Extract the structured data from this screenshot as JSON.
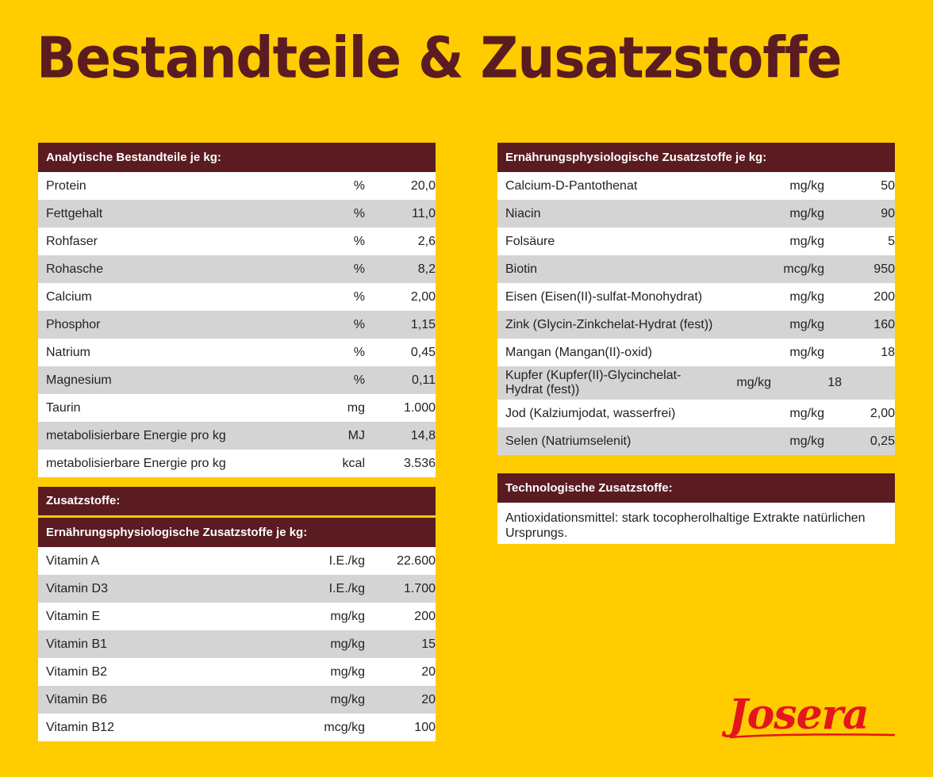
{
  "title": "Bestandteile & Zusatzstoffe",
  "colors": {
    "background": "#FFCC00",
    "header": "#5A1C20",
    "row_alt": "#D4D4D4",
    "logo": "#E3161B"
  },
  "analytical": {
    "header": "Analytische Bestandteile je kg:",
    "rows": [
      {
        "name": "Protein",
        "unit": "%",
        "value": "20,0"
      },
      {
        "name": "Fettgehalt",
        "unit": "%",
        "value": "11,0"
      },
      {
        "name": "Rohfaser",
        "unit": "%",
        "value": "2,6"
      },
      {
        "name": "Rohasche",
        "unit": "%",
        "value": "8,2"
      },
      {
        "name": "Calcium",
        "unit": "%",
        "value": "2,00"
      },
      {
        "name": "Phosphor",
        "unit": "%",
        "value": "1,15"
      },
      {
        "name": "Natrium",
        "unit": "%",
        "value": "0,45"
      },
      {
        "name": "Magnesium",
        "unit": "%",
        "value": "0,11"
      },
      {
        "name": "Taurin",
        "unit": "mg",
        "value": "1.000"
      },
      {
        "name": "metabolisierbare Energie pro kg",
        "unit": "MJ",
        "value": "14,8"
      },
      {
        "name": "metabolisierbare Energie pro kg",
        "unit": "kcal",
        "value": "3.536"
      }
    ]
  },
  "additives": {
    "header": "Zusatzstoffe:",
    "sub_header": "Ernährungsphysiologische Zusatzstoffe je kg:",
    "rows": [
      {
        "name": "Vitamin A",
        "unit": "I.E./kg",
        "value": "22.600"
      },
      {
        "name": "Vitamin D3",
        "unit": "I.E./kg",
        "value": "1.700"
      },
      {
        "name": "Vitamin E",
        "unit": "mg/kg",
        "value": "200"
      },
      {
        "name": "Vitamin B1",
        "unit": "mg/kg",
        "value": "15"
      },
      {
        "name": "Vitamin B2",
        "unit": "mg/kg",
        "value": "20"
      },
      {
        "name": "Vitamin B6",
        "unit": "mg/kg",
        "value": "20"
      },
      {
        "name": "Vitamin B12",
        "unit": "mcg/kg",
        "value": "100"
      }
    ]
  },
  "nutritional": {
    "header": "Ernährungsphysiologische Zusatzstoffe je kg:",
    "rows": [
      {
        "name": "Calcium-D-Pantothenat",
        "unit": "mg/kg",
        "value": "50"
      },
      {
        "name": "Niacin",
        "unit": "mg/kg",
        "value": "90"
      },
      {
        "name": "Folsäure",
        "unit": "mg/kg",
        "value": "5"
      },
      {
        "name": "Biotin",
        "unit": "mcg/kg",
        "value": "950"
      },
      {
        "name": "Eisen (Eisen(II)-sulfat-Monohydrat)",
        "unit": "mg/kg",
        "value": "200"
      },
      {
        "name": "Zink (Glycin-Zinkchelat-Hydrat (fest))",
        "unit": "mg/kg",
        "value": "160"
      },
      {
        "name": "Mangan (Mangan(II)-oxid)",
        "unit": "mg/kg",
        "value": "18"
      },
      {
        "name": "Kupfer (Kupfer(II)-Glycinchelat-Hydrat (fest))",
        "unit": "mg/kg",
        "value": "18"
      },
      {
        "name": "Jod (Kalziumjodat, wasserfrei)",
        "unit": "mg/kg",
        "value": "2,00"
      },
      {
        "name": "Selen (Natriumselenit)",
        "unit": "mg/kg",
        "value": "0,25"
      }
    ]
  },
  "technological": {
    "header": "Technologische Zusatzstoffe:",
    "text": "Antioxidationsmittel: stark tocopherolhaltige Extrakte natürlichen Ursprungs."
  },
  "logo": "Josera"
}
